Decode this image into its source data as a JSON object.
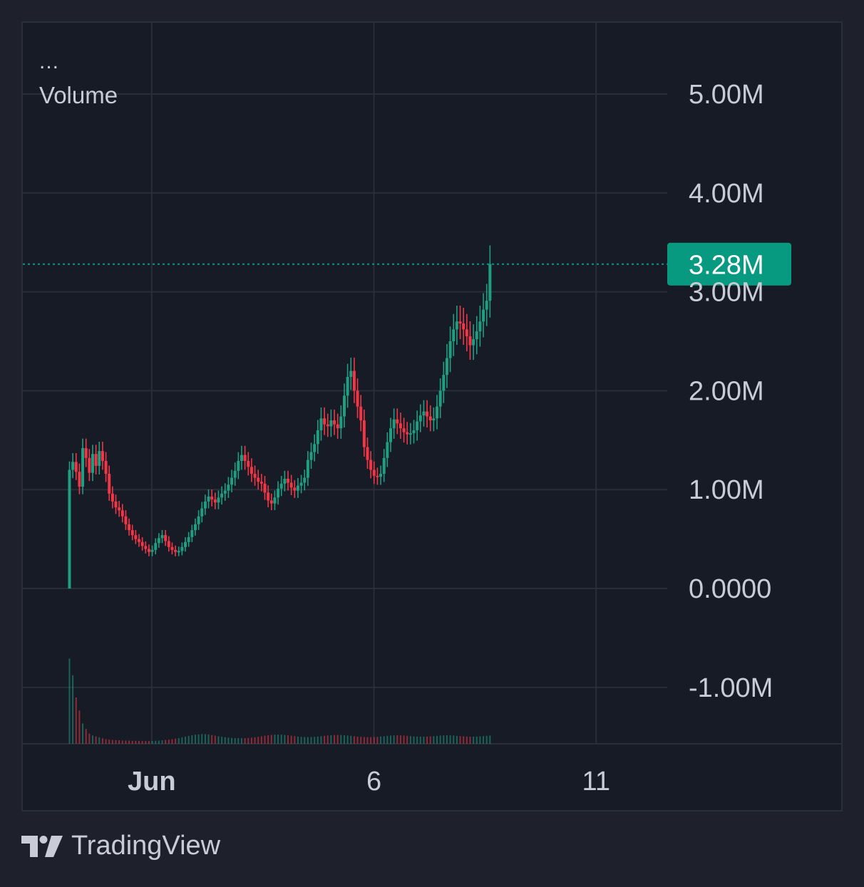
{
  "header": {
    "menu_label": "...",
    "series_label": "Volume"
  },
  "branding": {
    "name": "TradingView"
  },
  "colors": {
    "background": "#171b26",
    "grid": "#2a2e39",
    "text": "#c9ccd6",
    "up": "#1f9e82",
    "down": "#f23645",
    "last_price_tag": "#089981"
  },
  "chart_data": {
    "type": "candlestick",
    "y_axis": {
      "ticks": [
        "5.00M",
        "4.00M",
        "3.00M",
        "2.00M",
        "1.00M",
        "0.0000",
        "-1.00M"
      ],
      "tick_values": [
        5000000,
        4000000,
        3000000,
        2000000,
        1000000,
        0,
        -1000000
      ],
      "range": [
        -1570000,
        5720000
      ]
    },
    "x_axis": {
      "ticks": [
        "Jun",
        "6",
        "11"
      ],
      "tick_values": [
        1,
        6,
        11
      ],
      "range": [
        -1.9,
        12.6
      ]
    },
    "last_value": {
      "label": "3.28M",
      "value": 3280000
    },
    "grid": true,
    "series": [
      {
        "name": "price",
        "x_start": -0.85,
        "x_step": 0.0745,
        "close": [
          1200000,
          1280000,
          1180000,
          1030000,
          1420000,
          1320000,
          1170000,
          1360000,
          1240000,
          1390000,
          1290000,
          1160000,
          960000,
          880000,
          820000,
          790000,
          730000,
          650000,
          590000,
          540000,
          500000,
          470000,
          430000,
          400000,
          370000,
          390000,
          460000,
          510000,
          540000,
          480000,
          420000,
          390000,
          370000,
          380000,
          420000,
          470000,
          520000,
          590000,
          650000,
          730000,
          810000,
          880000,
          930000,
          900000,
          870000,
          920000,
          960000,
          990000,
          1050000,
          1120000,
          1190000,
          1290000,
          1350000,
          1290000,
          1230000,
          1160000,
          1120000,
          1080000,
          1060000,
          970000,
          890000,
          860000,
          920000,
          1010000,
          1060000,
          1110000,
          1070000,
          1020000,
          990000,
          1040000,
          1070000,
          1120000,
          1300000,
          1380000,
          1460000,
          1600000,
          1720000,
          1660000,
          1640000,
          1700000,
          1660000,
          1620000,
          1740000,
          1950000,
          2140000,
          2200000,
          2000000,
          1840000,
          1700000,
          1430000,
          1300000,
          1200000,
          1140000,
          1130000,
          1160000,
          1320000,
          1480000,
          1620000,
          1710000,
          1670000,
          1620000,
          1580000,
          1560000,
          1570000,
          1600000,
          1690000,
          1750000,
          1790000,
          1740000,
          1700000,
          1720000,
          1840000,
          2000000,
          2160000,
          2330000,
          2500000,
          2620000,
          2700000,
          2680000,
          2620000,
          2550000,
          2460000,
          2520000,
          2600000,
          2700000,
          2820000,
          2910000,
          3280000
        ]
      },
      {
        "name": "volume",
        "x_start": -0.85,
        "x_step": 0.0745,
        "values": [
          920000,
          740000,
          500000,
          360000,
          220000,
          160000,
          110000,
          90000,
          80000,
          70000,
          60000,
          50000,
          45000,
          42000,
          40000,
          38000,
          36000,
          35000,
          34000,
          33000,
          32000,
          32000,
          31000,
          30000,
          30000,
          31000,
          33000,
          35000,
          38000,
          41000,
          45000,
          50000,
          56000,
          62000,
          70000,
          78000,
          86000,
          92000,
          98000,
          102000,
          105000,
          104000,
          100000,
          94000,
          88000,
          82000,
          76000,
          71000,
          67000,
          64000,
          62000,
          61000,
          60000,
          61000,
          63000,
          66000,
          70000,
          75000,
          81000,
          87000,
          92000,
          96000,
          99000,
          100000,
          99000,
          96000,
          92000,
          87000,
          82000,
          78000,
          75000,
          73000,
          72000,
          73000,
          75000,
          78000,
          82000,
          86000,
          90000,
          93000,
          95000,
          96000,
          95000,
          93000,
          90000,
          86000,
          82000,
          78000,
          75000,
          73000,
          72000,
          72000,
          73000,
          75000,
          78000,
          82000,
          86000,
          89000,
          91000,
          92000,
          91000,
          89000,
          86000,
          83000,
          80000,
          78000,
          77000,
          77000,
          78000,
          80000,
          83000,
          86000,
          89000,
          91000,
          92000,
          91000,
          89000,
          86000,
          83000,
          80000,
          78000,
          77000,
          77000,
          78000,
          80000,
          83000,
          86000,
          89000
        ]
      }
    ]
  }
}
